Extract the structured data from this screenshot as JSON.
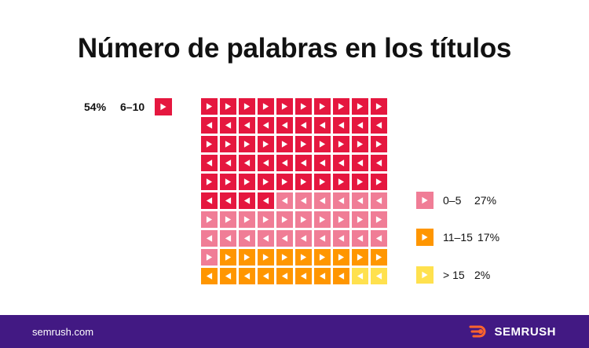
{
  "title": "Número de palabras en los títulos",
  "footer": {
    "site": "semrush.com",
    "brand": "SEMRUSH"
  },
  "colors": {
    "6-10": "#e5173f",
    "0-5": "#f07d96",
    "11-15": "#ff9600",
    ">15": "#ffe14e",
    "footer_bg": "#421983",
    "brand_icon": "#ff642d"
  },
  "chart_data": {
    "type": "waffle",
    "title": "Número de palabras en los títulos",
    "grid": {
      "rows": 10,
      "cols": 10
    },
    "categories": [
      {
        "label": "6–10",
        "value": 54,
        "value_label": "54%",
        "color": "#e5173f"
      },
      {
        "label": "0–5",
        "value": 27,
        "value_label": "27%",
        "color": "#f07d96"
      },
      {
        "label": "11–15",
        "value": 17,
        "value_label": "17%",
        "color": "#ff9600"
      },
      {
        "label": "> 15",
        "value": 2,
        "value_label": "2%",
        "color": "#ffe14e"
      }
    ],
    "legend": {
      "left": [
        "6–10"
      ],
      "right": [
        "0–5",
        "11–15",
        "> 15"
      ]
    }
  }
}
